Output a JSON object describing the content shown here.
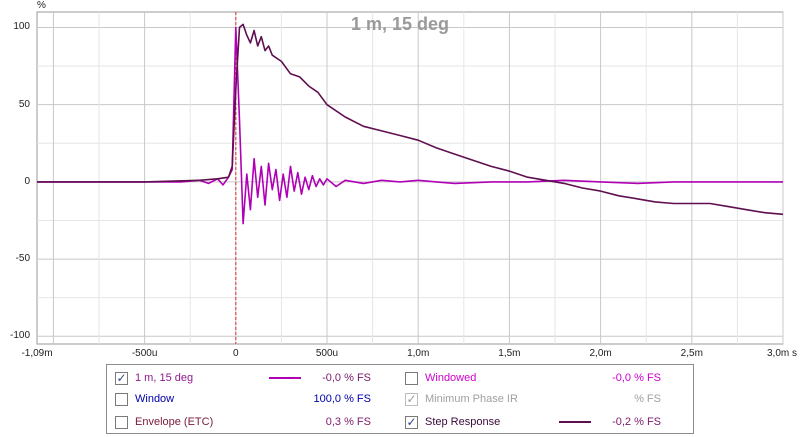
{
  "chart_data": {
    "type": "line",
    "title": "1 m, 15 deg",
    "xlabel": "s",
    "ylabel": "%",
    "xlim": [
      -0.00109,
      0.003
    ],
    "ylim": [
      -105,
      110
    ],
    "grid": true,
    "x_ticks": [
      {
        "value": -0.00109,
        "label": "-1,09m"
      },
      {
        "value": -0.0005,
        "label": "-500u"
      },
      {
        "value": 0,
        "label": "0"
      },
      {
        "value": 0.0005,
        "label": "500u"
      },
      {
        "value": 0.001,
        "label": "1,0m"
      },
      {
        "value": 0.0015,
        "label": "1,5m"
      },
      {
        "value": 0.002,
        "label": "2,0m"
      },
      {
        "value": 0.0025,
        "label": "2,5m"
      },
      {
        "value": 0.003,
        "label": "3,0m s"
      }
    ],
    "y_ticks": [
      {
        "value": 100,
        "label": "100"
      },
      {
        "value": 50,
        "label": "50"
      },
      {
        "value": 0,
        "label": "0"
      },
      {
        "value": -50,
        "label": "-50"
      },
      {
        "value": -100,
        "label": "-100"
      }
    ],
    "marker_x": 0,
    "series": [
      {
        "name": "1 m, 15 deg",
        "color": "#b000b5",
        "x": [
          -0.00109,
          -0.0005,
          -0.0003,
          -0.0002,
          -0.00015,
          -0.0001,
          -7e-05,
          -4e-05,
          -2e-05,
          0,
          2e-05,
          4e-05,
          6e-05,
          8e-05,
          0.0001,
          0.00012,
          0.00014,
          0.00016,
          0.00018,
          0.0002,
          0.00022,
          0.00024,
          0.00026,
          0.00028,
          0.0003,
          0.00032,
          0.00034,
          0.00036,
          0.00038,
          0.0004,
          0.00042,
          0.00044,
          0.00046,
          0.00048,
          0.0005,
          0.00055,
          0.0006,
          0.0007,
          0.0008,
          0.0009,
          0.001,
          0.0011,
          0.0012,
          0.0014,
          0.0016,
          0.0018,
          0.002,
          0.0022,
          0.0024,
          0.0026,
          0.0028,
          0.003
        ],
        "y": [
          0,
          0,
          0,
          1,
          -1,
          2,
          -2,
          3,
          8,
          100,
          40,
          -27,
          5,
          -18,
          15,
          -10,
          10,
          -15,
          12,
          -5,
          8,
          -12,
          5,
          -10,
          10,
          -6,
          6,
          -8,
          3,
          -5,
          4,
          -3,
          2,
          -2,
          2,
          -3,
          1,
          -1,
          1,
          0,
          1,
          0,
          -1,
          0,
          0,
          1,
          0,
          -1,
          0,
          0,
          0,
          0
        ]
      },
      {
        "name": "Step Response",
        "color": "#5e0f4f",
        "x": [
          -0.00109,
          -0.0005,
          -0.0002,
          -0.0001,
          -4e-05,
          -2e-05,
          0,
          2e-05,
          4e-05,
          6e-05,
          8e-05,
          0.0001,
          0.00012,
          0.00014,
          0.00016,
          0.00018,
          0.0002,
          0.00025,
          0.0003,
          0.00035,
          0.0004,
          0.00045,
          0.0005,
          0.0006,
          0.0007,
          0.0008,
          0.0009,
          0.001,
          0.0011,
          0.0012,
          0.0013,
          0.0014,
          0.0015,
          0.0016,
          0.0017,
          0.0018,
          0.0019,
          0.002,
          0.0021,
          0.0022,
          0.0023,
          0.0024,
          0.0025,
          0.0026,
          0.0027,
          0.0028,
          0.0029,
          0.003
        ],
        "y": [
          0,
          0,
          1,
          2,
          3,
          10,
          60,
          100,
          102,
          95,
          90,
          98,
          88,
          94,
          85,
          88,
          82,
          78,
          70,
          68,
          62,
          58,
          50,
          42,
          36,
          33,
          30,
          27,
          22,
          18,
          14,
          10,
          7,
          3,
          1,
          -1,
          -4,
          -6,
          -9,
          -11,
          -13,
          -14,
          -14,
          -14,
          -16,
          -18,
          -20,
          -21
        ]
      }
    ]
  },
  "legend": {
    "rows": [
      {
        "label": "1 m, 15 deg",
        "checked": true,
        "enabled": true,
        "color": "#8e1a8e",
        "swatch": "#b000b5",
        "value": "-0,0 % FS"
      },
      {
        "label": "Window",
        "checked": false,
        "enabled": true,
        "color": "#0000aa",
        "swatch": "",
        "value": "100,0 % FS"
      },
      {
        "label": "Envelope (ETC)",
        "checked": false,
        "enabled": true,
        "color": "#7a1a3a",
        "swatch": "",
        "value": "0,3 % FS"
      },
      {
        "label": "Windowed",
        "checked": false,
        "enabled": true,
        "color": "#d000d0",
        "swatch": "",
        "value": "-0,0 % FS"
      },
      {
        "label": "Minimum Phase IR",
        "checked": true,
        "enabled": false,
        "color": "#a0a0a0",
        "swatch": "",
        "value": "% FS"
      },
      {
        "label": "Step Response",
        "checked": true,
        "enabled": true,
        "color": "#3a0a3a",
        "swatch": "#5e0f4f",
        "value": "-0,2 % FS"
      }
    ]
  }
}
